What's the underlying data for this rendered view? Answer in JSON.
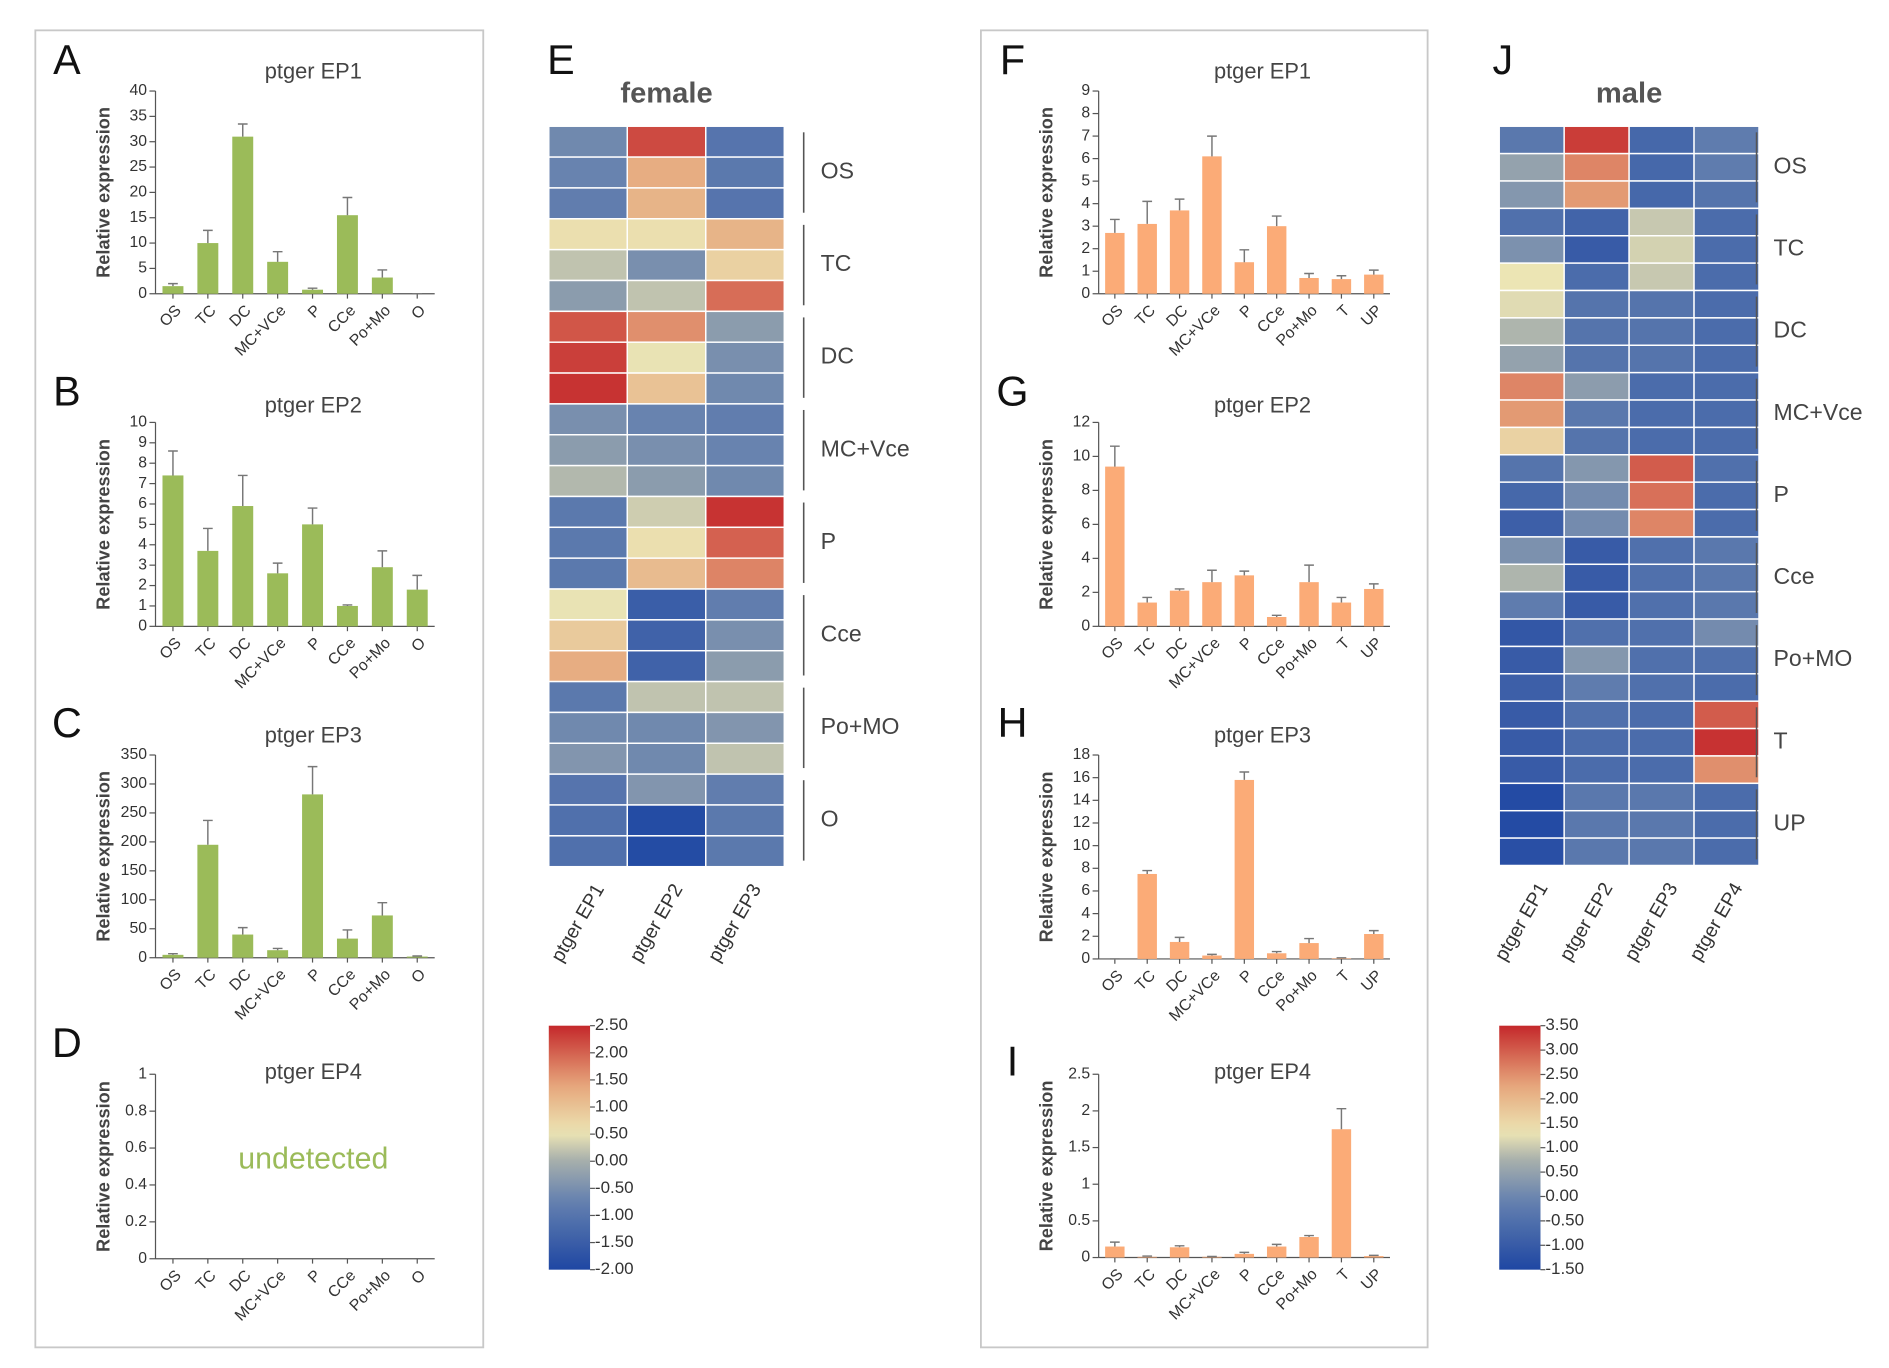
{
  "chart_data": [
    {
      "type": "bar",
      "panel": "A",
      "title": "ptger EP1",
      "ylabel": "Relative expression",
      "color": "#9bbb59",
      "categories": [
        "OS",
        "TC",
        "DC",
        "MC+VCe",
        "P",
        "CCe",
        "Po+Mo",
        "O"
      ],
      "values": [
        1.5,
        10,
        31,
        6.3,
        0.8,
        15.5,
        3.2,
        0
      ],
      "errors": [
        0.5,
        2.5,
        2.5,
        2,
        0.3,
        3.5,
        1.5,
        0
      ],
      "ylim": [
        0,
        40
      ],
      "yticks": [
        0,
        5,
        10,
        15,
        20,
        25,
        30,
        35,
        40
      ]
    },
    {
      "type": "bar",
      "panel": "B",
      "title": "ptger EP2",
      "ylabel": "Relative expression",
      "color": "#9bbb59",
      "categories": [
        "OS",
        "TC",
        "DC",
        "MC+VCe",
        "P",
        "CCe",
        "Po+Mo",
        "O"
      ],
      "values": [
        7.4,
        3.7,
        5.9,
        2.6,
        5.0,
        1.0,
        2.9,
        1.8
      ],
      "errors": [
        1.2,
        1.1,
        1.5,
        0.5,
        0.8,
        0.05,
        0.8,
        0.7
      ],
      "ylim": [
        0,
        10
      ],
      "yticks": [
        0,
        1,
        2,
        3,
        4,
        5,
        6,
        7,
        8,
        9,
        10
      ]
    },
    {
      "type": "bar",
      "panel": "C",
      "title": "ptger EP3",
      "ylabel": "Relative expression",
      "color": "#9bbb59",
      "categories": [
        "OS",
        "TC",
        "DC",
        "MC+VCe",
        "P",
        "CCe",
        "Po+Mo",
        "O"
      ],
      "values": [
        5,
        195,
        40,
        13,
        282,
        33,
        73,
        2
      ],
      "errors": [
        2,
        42,
        12,
        3,
        48,
        15,
        22,
        1
      ],
      "ylim": [
        0,
        350
      ],
      "yticks": [
        0,
        50,
        100,
        150,
        200,
        250,
        300,
        350
      ]
    },
    {
      "type": "bar",
      "panel": "D",
      "title": "ptger EP4",
      "ylabel": "Relative expression",
      "color": "#9bbb59",
      "annotation": "undetected",
      "categories": [
        "OS",
        "TC",
        "DC",
        "MC+VCe",
        "P",
        "CCe",
        "Po+Mo",
        "O"
      ],
      "ylim": [
        0,
        1
      ],
      "yticks": [
        0,
        0.2,
        0.4,
        0.6,
        0.8,
        1
      ]
    },
    {
      "type": "heatmap",
      "panel": "E",
      "title": "female",
      "columns": [
        "ptger EP1",
        "ptger EP2",
        "ptger EP3"
      ],
      "zlim": [
        -2,
        2.5
      ],
      "zticks": [
        {
          "value": 2.5,
          "label": "2.50"
        },
        {
          "value": 2,
          "label": "2.00"
        },
        {
          "value": 1.5,
          "label": "1.50"
        },
        {
          "value": 1,
          "label": "1.00"
        },
        {
          "value": 0.5,
          "label": "0.50"
        },
        {
          "value": 0,
          "label": "0.00"
        },
        {
          "value": -0.5,
          "label": "-0.50"
        },
        {
          "value": -1,
          "label": "-1.00"
        },
        {
          "value": -1.5,
          "label": "-1.50"
        },
        {
          "value": -2,
          "label": "-2.00"
        }
      ],
      "groups": [
        {
          "name": "OS",
          "values": [
            [
              -0.6,
              2.2,
              -1.0
            ],
            [
              -0.7,
              1.3,
              -0.9
            ],
            [
              -0.8,
              1.2,
              -1.0
            ]
          ]
        },
        {
          "name": "TC",
          "values": [
            [
              0.6,
              0.6,
              1.2
            ],
            [
              0.2,
              -0.5,
              0.8
            ],
            [
              -0.3,
              0.2,
              1.9
            ]
          ]
        },
        {
          "name": "DC",
          "values": [
            [
              2.1,
              1.6,
              -0.3
            ],
            [
              2.3,
              0.5,
              -0.5
            ],
            [
              2.4,
              1.0,
              -0.6
            ]
          ]
        },
        {
          "name": "MC+Vce",
          "values": [
            [
              -0.5,
              -0.7,
              -0.8
            ],
            [
              -0.3,
              -0.5,
              -0.7
            ],
            [
              0.1,
              -0.3,
              -0.6
            ]
          ]
        },
        {
          "name": "P",
          "values": [
            [
              -0.9,
              0.3,
              2.4
            ],
            [
              -0.9,
              0.6,
              2.0
            ],
            [
              -0.9,
              1.1,
              1.7
            ]
          ]
        },
        {
          "name": "Cce",
          "values": [
            [
              0.5,
              -1.5,
              -0.8
            ],
            [
              0.9,
              -1.4,
              -0.5
            ],
            [
              1.3,
              -1.4,
              -0.3
            ]
          ]
        },
        {
          "name": "Po+MO",
          "values": [
            [
              -0.9,
              0.2,
              0.2
            ],
            [
              -0.6,
              -0.6,
              -0.4
            ],
            [
              -0.4,
              -0.6,
              0.2
            ]
          ]
        },
        {
          "name": "O",
          "values": [
            [
              -1.0,
              -0.4,
              -0.8
            ],
            [
              -1.1,
              -1.9,
              -0.9
            ],
            [
              -1.1,
              -1.9,
              -0.9
            ]
          ]
        }
      ]
    },
    {
      "type": "bar",
      "panel": "F",
      "title": "ptger EP1",
      "ylabel": "Relative expression",
      "color": "#fbab77",
      "categories": [
        "OS",
        "TC",
        "DC",
        "MC+VCe",
        "P",
        "CCe",
        "Po+Mo",
        "T",
        "UP"
      ],
      "values": [
        2.7,
        3.1,
        3.7,
        6.1,
        1.4,
        3.0,
        0.7,
        0.65,
        0.85
      ],
      "errors": [
        0.6,
        1.0,
        0.5,
        0.9,
        0.55,
        0.45,
        0.2,
        0.15,
        0.2
      ],
      "ylim": [
        0,
        9
      ],
      "yticks": [
        0,
        1,
        2,
        3,
        4,
        5,
        6,
        7,
        8,
        9
      ]
    },
    {
      "type": "bar",
      "panel": "G",
      "title": "ptger EP2",
      "ylabel": "Relative expression",
      "color": "#fbab77",
      "categories": [
        "OS",
        "TC",
        "DC",
        "MC+VCe",
        "P",
        "CCe",
        "Po+Mo",
        "T",
        "UP"
      ],
      "values": [
        9.4,
        1.4,
        2.1,
        2.6,
        3.0,
        0.55,
        2.6,
        1.4,
        2.2
      ],
      "errors": [
        1.2,
        0.3,
        0.1,
        0.7,
        0.25,
        0.1,
        1.0,
        0.3,
        0.3
      ],
      "ylim": [
        0,
        12
      ],
      "yticks": [
        0,
        2,
        4,
        6,
        8,
        10,
        12
      ]
    },
    {
      "type": "bar",
      "panel": "H",
      "title": "ptger EP3",
      "ylabel": "Relative expression",
      "color": "#fbab77",
      "categories": [
        "OS",
        "TC",
        "DC",
        "MC+VCe",
        "P",
        "CCe",
        "Po+Mo",
        "T",
        "UP"
      ],
      "values": [
        0,
        7.5,
        1.5,
        0.3,
        15.8,
        0.5,
        1.4,
        0.05,
        2.2
      ],
      "errors": [
        0,
        0.3,
        0.4,
        0.1,
        0.7,
        0.15,
        0.4,
        0.05,
        0.3
      ],
      "ylim": [
        0,
        18
      ],
      "yticks": [
        0,
        2,
        4,
        6,
        8,
        10,
        12,
        14,
        16,
        18
      ]
    },
    {
      "type": "bar",
      "panel": "I",
      "title": "ptger EP4",
      "ylabel": "Relative expression",
      "color": "#fbab77",
      "categories": [
        "OS",
        "TC",
        "DC",
        "MC+VCe",
        "P",
        "CCe",
        "Po+Mo",
        "T",
        "UP"
      ],
      "values": [
        0.15,
        0.01,
        0.14,
        0.01,
        0.05,
        0.15,
        0.28,
        1.75,
        0.02
      ],
      "errors": [
        0.06,
        0.01,
        0.02,
        0.005,
        0.02,
        0.03,
        0.02,
        0.28,
        0.01
      ],
      "ylim": [
        0,
        2.5
      ],
      "yticks": [
        0,
        0.5,
        1,
        1.5,
        2,
        2.5
      ]
    },
    {
      "type": "heatmap",
      "panel": "J",
      "title": "male",
      "columns": [
        "ptger EP1",
        "ptger EP2",
        "ptger EP3",
        "ptger EP4"
      ],
      "zlim": [
        -1.5,
        3.5
      ],
      "zticks": [
        {
          "value": 3.5,
          "label": "3.50"
        },
        {
          "value": 3,
          "label": "3.00"
        },
        {
          "value": 2.5,
          "label": "2.50"
        },
        {
          "value": 2,
          "label": "2.00"
        },
        {
          "value": 1.5,
          "label": "1.50"
        },
        {
          "value": 1,
          "label": "1.00"
        },
        {
          "value": 0.5,
          "label": "0.50"
        },
        {
          "value": 0,
          "label": "0.00"
        },
        {
          "value": -0.5,
          "label": "-0.50"
        },
        {
          "value": -1,
          "label": "-1.00"
        },
        {
          "value": -1.5,
          "label": "-1.50"
        }
      ],
      "groups": [
        {
          "name": "OS",
          "values": [
            [
              -0.3,
              3.3,
              -0.7,
              -0.2
            ],
            [
              0.5,
              2.6,
              -0.7,
              -0.2
            ],
            [
              0.3,
              2.4,
              -0.7,
              -0.4
            ]
          ]
        },
        {
          "name": "TC",
          "values": [
            [
              -0.5,
              -0.8,
              1.0,
              -0.6
            ],
            [
              0.2,
              -1.0,
              1.1,
              -0.6
            ],
            [
              1.3,
              -0.6,
              1.0,
              -0.6
            ]
          ]
        },
        {
          "name": "DC",
          "values": [
            [
              1.2,
              -0.4,
              -0.4,
              -0.6
            ],
            [
              0.8,
              -0.4,
              -0.4,
              -0.6
            ],
            [
              0.5,
              -0.4,
              -0.4,
              -0.6
            ]
          ]
        },
        {
          "name": "MC+Vce",
          "values": [
            [
              2.6,
              0.4,
              -0.6,
              -0.6
            ],
            [
              2.4,
              -0.3,
              -0.6,
              -0.6
            ],
            [
              1.6,
              -0.4,
              -0.6,
              -0.6
            ]
          ]
        },
        {
          "name": "P",
          "values": [
            [
              -0.4,
              0.3,
              3.0,
              -0.5
            ],
            [
              -0.7,
              0.1,
              2.8,
              -0.6
            ],
            [
              -0.9,
              0.1,
              2.6,
              -0.6
            ]
          ]
        },
        {
          "name": "Cce",
          "values": [
            [
              0.2,
              -1.0,
              -0.5,
              -0.3
            ],
            [
              0.8,
              -1.0,
              -0.5,
              -0.3
            ],
            [
              -0.2,
              -1.0,
              -0.5,
              -0.3
            ]
          ]
        },
        {
          "name": "Po+MO",
          "values": [
            [
              -1.1,
              -0.5,
              -0.5,
              0.1
            ],
            [
              -1.0,
              0.3,
              -0.5,
              -0.5
            ],
            [
              -0.9,
              -0.2,
              -0.5,
              -0.6
            ]
          ]
        },
        {
          "name": "T",
          "values": [
            [
              -1.0,
              -0.5,
              -0.6,
              3.0
            ],
            [
              -1.0,
              -0.6,
              -0.6,
              3.4
            ],
            [
              -1.0,
              -0.6,
              -0.6,
              2.5
            ]
          ]
        },
        {
          "name": "UP",
          "values": [
            [
              -1.4,
              -0.3,
              -0.3,
              -0.6
            ],
            [
              -1.4,
              -0.3,
              -0.3,
              -0.6
            ],
            [
              -1.3,
              -0.3,
              -0.3,
              -0.6
            ]
          ]
        }
      ]
    }
  ]
}
